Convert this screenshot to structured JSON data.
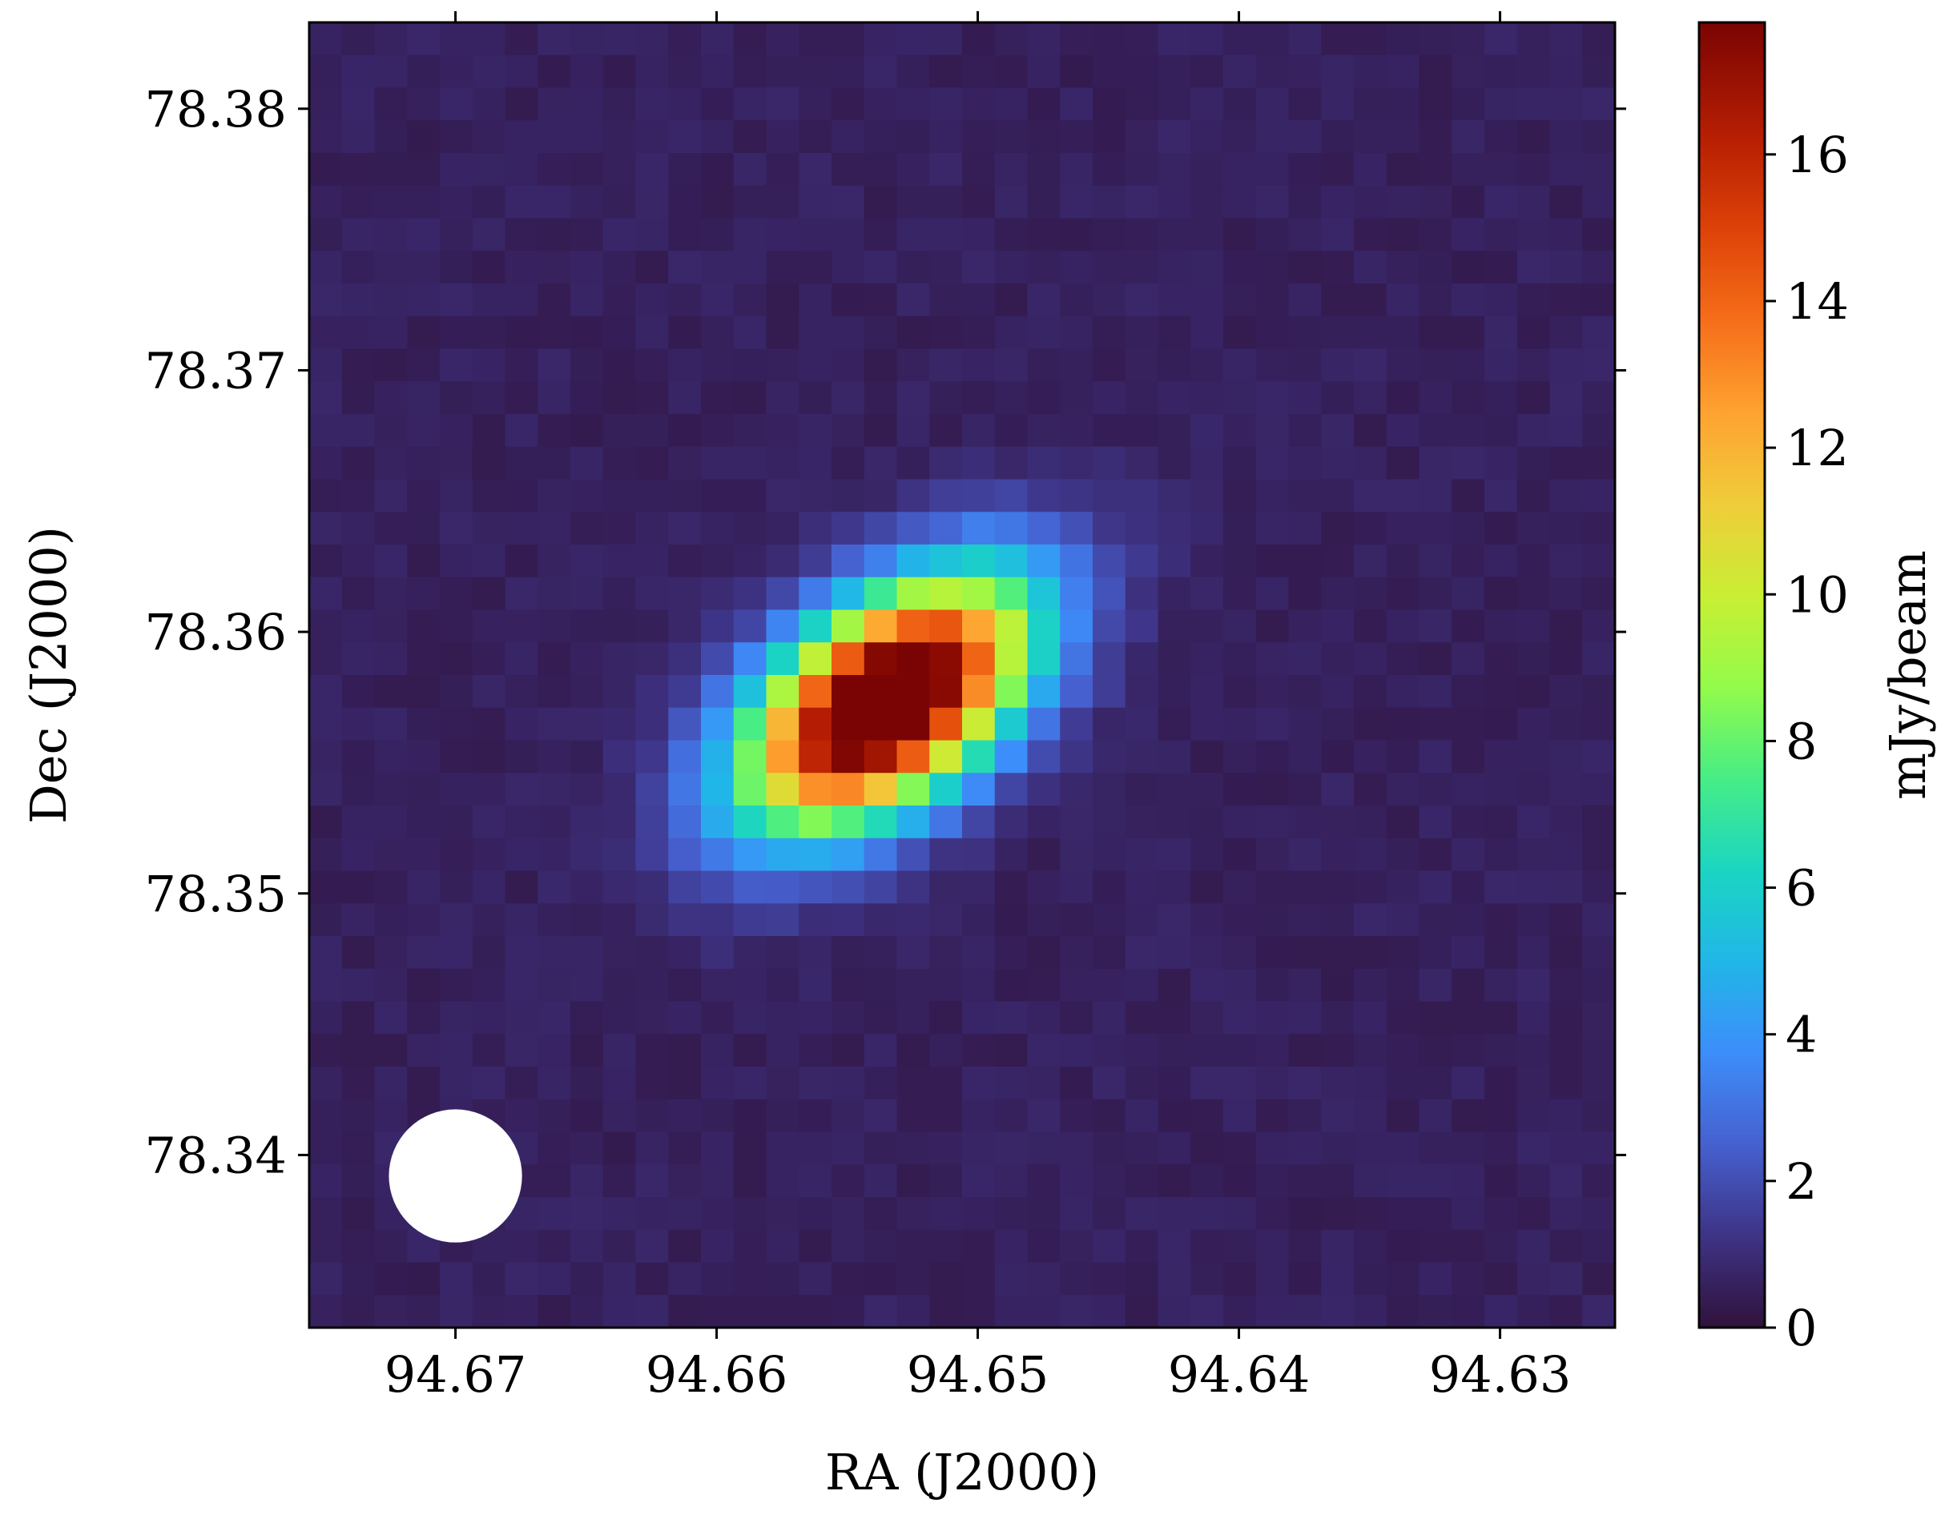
{
  "chart_data": {
    "type": "heatmap",
    "xlabel": "RA (J2000)",
    "ylabel": "Dec (J2000)",
    "colorbar_label": "mJy/beam",
    "x_ticks": [
      "94.67",
      "94.66",
      "94.65",
      "94.64",
      "94.63"
    ],
    "x_tick_values": [
      94.67,
      94.66,
      94.65,
      94.64,
      94.63
    ],
    "y_ticks": [
      "78.38",
      "78.37",
      "78.36",
      "78.35",
      "78.34"
    ],
    "y_tick_values": [
      78.38,
      78.37,
      78.36,
      78.35,
      78.34
    ],
    "colorbar_ticks": [
      "0",
      "2",
      "4",
      "6",
      "8",
      "10",
      "12",
      "14",
      "16"
    ],
    "colorbar_tick_values": [
      0,
      2,
      4,
      6,
      8,
      10,
      12,
      14,
      16
    ],
    "xlim": [
      94.6756,
      94.6256
    ],
    "ylim": [
      78.3334,
      78.3833
    ],
    "value_range": [
      0,
      17.8
    ],
    "colormap": "turbo",
    "source": {
      "ra": 94.6535,
      "dec": 78.3573,
      "peak_mJy_per_beam": 21,
      "sigma_major_deg": 0.0043,
      "sigma_minor_deg": 0.0024,
      "position_angle_deg": 38
    },
    "grid": {
      "cols": 40,
      "rows": 40,
      "background_mJy_per_beam": 0.5
    },
    "beam": {
      "ra": 94.67,
      "dec": 78.3392,
      "diameter_deg": 0.0051,
      "color": "#ffffff"
    },
    "grid_lines": false
  }
}
